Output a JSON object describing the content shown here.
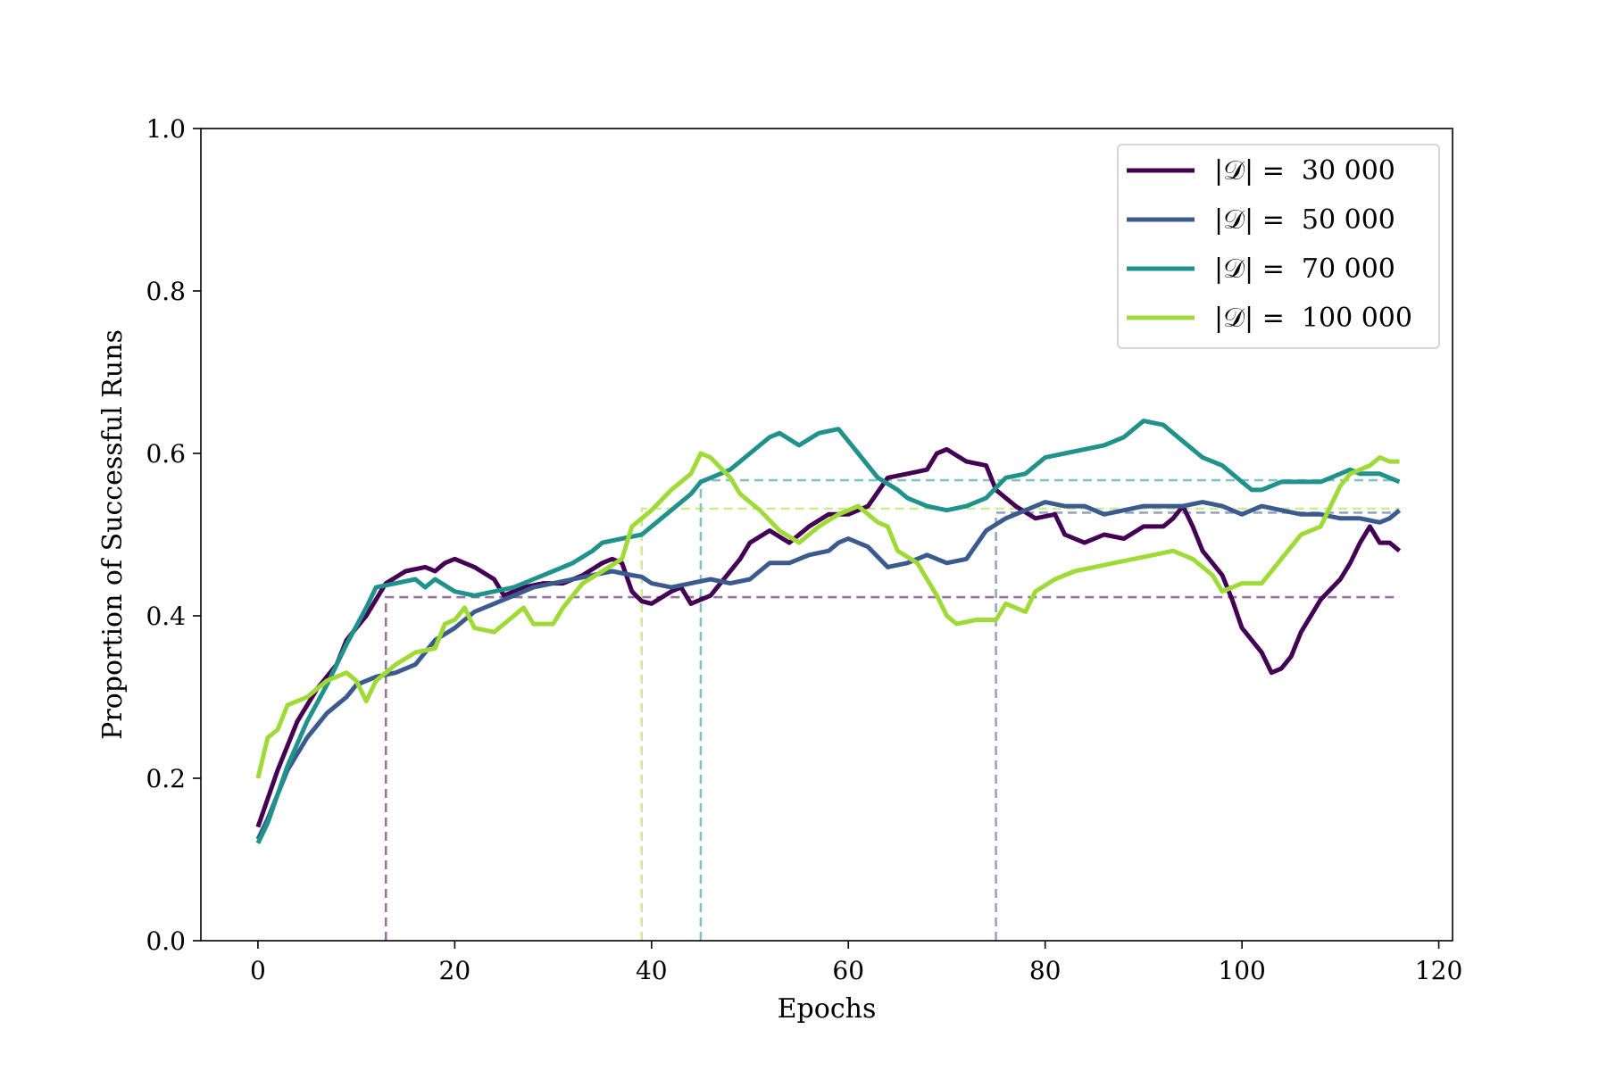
{
  "chart_data": {
    "type": "line",
    "title": "",
    "xlabel": "Epochs",
    "ylabel": "Proportion of Successful Runs",
    "xlim": [
      -5.8,
      121.4
    ],
    "ylim": [
      0.0,
      1.0
    ],
    "xticks": [
      0,
      20,
      40,
      60,
      80,
      100,
      120
    ],
    "yticks": [
      "0.0",
      "0.2",
      "0.4",
      "0.6",
      "0.8",
      "1.0"
    ],
    "grid": false,
    "legend_position": "top-right",
    "series": [
      {
        "name": "|𝒟| =  30 000",
        "color": "#440154",
        "threshold": {
          "x": 13,
          "y": 0.423
        },
        "points": [
          [
            0,
            0.14
          ],
          [
            2,
            0.21
          ],
          [
            4,
            0.27
          ],
          [
            6,
            0.31
          ],
          [
            8,
            0.34
          ],
          [
            9,
            0.37
          ],
          [
            10,
            0.385
          ],
          [
            11,
            0.4
          ],
          [
            13,
            0.44
          ],
          [
            15,
            0.455
          ],
          [
            17,
            0.46
          ],
          [
            18,
            0.455
          ],
          [
            19,
            0.465
          ],
          [
            20,
            0.47
          ],
          [
            22,
            0.46
          ],
          [
            24,
            0.445
          ],
          [
            25,
            0.425
          ],
          [
            27,
            0.435
          ],
          [
            29,
            0.44
          ],
          [
            31,
            0.44
          ],
          [
            33,
            0.45
          ],
          [
            35,
            0.465
          ],
          [
            36,
            0.47
          ],
          [
            37,
            0.465
          ],
          [
            38,
            0.43
          ],
          [
            39,
            0.418
          ],
          [
            40,
            0.415
          ],
          [
            42,
            0.43
          ],
          [
            43,
            0.435
          ],
          [
            44,
            0.415
          ],
          [
            46,
            0.425
          ],
          [
            47,
            0.44
          ],
          [
            49,
            0.47
          ],
          [
            50,
            0.49
          ],
          [
            52,
            0.505
          ],
          [
            54,
            0.49
          ],
          [
            56,
            0.51
          ],
          [
            58,
            0.525
          ],
          [
            60,
            0.525
          ],
          [
            62,
            0.535
          ],
          [
            64,
            0.57
          ],
          [
            66,
            0.575
          ],
          [
            68,
            0.58
          ],
          [
            69,
            0.6
          ],
          [
            70,
            0.605
          ],
          [
            72,
            0.59
          ],
          [
            74,
            0.585
          ],
          [
            75,
            0.555
          ],
          [
            77,
            0.535
          ],
          [
            79,
            0.52
          ],
          [
            81,
            0.525
          ],
          [
            82,
            0.5
          ],
          [
            84,
            0.49
          ],
          [
            86,
            0.5
          ],
          [
            88,
            0.495
          ],
          [
            90,
            0.51
          ],
          [
            92,
            0.51
          ],
          [
            93,
            0.52
          ],
          [
            94,
            0.535
          ],
          [
            95,
            0.51
          ],
          [
            96,
            0.48
          ],
          [
            98,
            0.45
          ],
          [
            99,
            0.42
          ],
          [
            100,
            0.385
          ],
          [
            102,
            0.355
          ],
          [
            103,
            0.33
          ],
          [
            104,
            0.335
          ],
          [
            105,
            0.35
          ],
          [
            106,
            0.38
          ],
          [
            108,
            0.42
          ],
          [
            110,
            0.445
          ],
          [
            111,
            0.465
          ],
          [
            112,
            0.49
          ],
          [
            113,
            0.51
          ],
          [
            114,
            0.49
          ],
          [
            115,
            0.49
          ],
          [
            116,
            0.48
          ]
        ]
      },
      {
        "name": "|𝒟| =  50 000",
        "color": "#3b5b8f",
        "threshold": {
          "x": 75,
          "y": 0.527
        },
        "points": [
          [
            0,
            0.125
          ],
          [
            1,
            0.15
          ],
          [
            3,
            0.21
          ],
          [
            5,
            0.25
          ],
          [
            7,
            0.28
          ],
          [
            9,
            0.3
          ],
          [
            10,
            0.315
          ],
          [
            12,
            0.325
          ],
          [
            14,
            0.33
          ],
          [
            16,
            0.34
          ],
          [
            18,
            0.37
          ],
          [
            20,
            0.385
          ],
          [
            22,
            0.405
          ],
          [
            24,
            0.415
          ],
          [
            26,
            0.425
          ],
          [
            28,
            0.435
          ],
          [
            30,
            0.44
          ],
          [
            32,
            0.445
          ],
          [
            34,
            0.45
          ],
          [
            36,
            0.455
          ],
          [
            38,
            0.45
          ],
          [
            39,
            0.448
          ],
          [
            40,
            0.44
          ],
          [
            42,
            0.435
          ],
          [
            44,
            0.44
          ],
          [
            46,
            0.445
          ],
          [
            48,
            0.44
          ],
          [
            50,
            0.445
          ],
          [
            52,
            0.465
          ],
          [
            54,
            0.465
          ],
          [
            56,
            0.475
          ],
          [
            58,
            0.48
          ],
          [
            59,
            0.49
          ],
          [
            60,
            0.495
          ],
          [
            62,
            0.485
          ],
          [
            64,
            0.46
          ],
          [
            66,
            0.465
          ],
          [
            68,
            0.475
          ],
          [
            70,
            0.465
          ],
          [
            72,
            0.47
          ],
          [
            74,
            0.505
          ],
          [
            76,
            0.52
          ],
          [
            78,
            0.53
          ],
          [
            80,
            0.54
          ],
          [
            82,
            0.535
          ],
          [
            84,
            0.535
          ],
          [
            86,
            0.525
          ],
          [
            88,
            0.53
          ],
          [
            90,
            0.535
          ],
          [
            92,
            0.535
          ],
          [
            94,
            0.535
          ],
          [
            96,
            0.54
          ],
          [
            98,
            0.535
          ],
          [
            100,
            0.525
          ],
          [
            102,
            0.535
          ],
          [
            104,
            0.53
          ],
          [
            106,
            0.525
          ],
          [
            108,
            0.525
          ],
          [
            110,
            0.52
          ],
          [
            112,
            0.52
          ],
          [
            114,
            0.515
          ],
          [
            115,
            0.52
          ],
          [
            116,
            0.53
          ]
        ]
      },
      {
        "name": "|𝒟| =  70 000",
        "color": "#21918c",
        "threshold": {
          "x": 45,
          "y": 0.567
        },
        "points": [
          [
            0,
            0.12
          ],
          [
            1,
            0.145
          ],
          [
            3,
            0.215
          ],
          [
            5,
            0.27
          ],
          [
            7,
            0.315
          ],
          [
            9,
            0.365
          ],
          [
            11,
            0.41
          ],
          [
            12,
            0.435
          ],
          [
            14,
            0.44
          ],
          [
            16,
            0.445
          ],
          [
            17,
            0.435
          ],
          [
            18,
            0.445
          ],
          [
            20,
            0.43
          ],
          [
            22,
            0.425
          ],
          [
            24,
            0.43
          ],
          [
            26,
            0.435
          ],
          [
            28,
            0.445
          ],
          [
            30,
            0.455
          ],
          [
            32,
            0.465
          ],
          [
            34,
            0.48
          ],
          [
            35,
            0.49
          ],
          [
            37,
            0.495
          ],
          [
            39,
            0.5
          ],
          [
            40,
            0.51
          ],
          [
            42,
            0.53
          ],
          [
            44,
            0.55
          ],
          [
            45,
            0.565
          ],
          [
            47,
            0.575
          ],
          [
            48,
            0.58
          ],
          [
            50,
            0.6
          ],
          [
            52,
            0.62
          ],
          [
            53,
            0.625
          ],
          [
            55,
            0.61
          ],
          [
            57,
            0.625
          ],
          [
            59,
            0.63
          ],
          [
            61,
            0.6
          ],
          [
            63,
            0.57
          ],
          [
            65,
            0.555
          ],
          [
            66,
            0.545
          ],
          [
            68,
            0.535
          ],
          [
            70,
            0.53
          ],
          [
            72,
            0.535
          ],
          [
            74,
            0.545
          ],
          [
            76,
            0.57
          ],
          [
            78,
            0.575
          ],
          [
            80,
            0.595
          ],
          [
            82,
            0.6
          ],
          [
            84,
            0.605
          ],
          [
            86,
            0.61
          ],
          [
            88,
            0.62
          ],
          [
            89,
            0.63
          ],
          [
            90,
            0.64
          ],
          [
            92,
            0.635
          ],
          [
            94,
            0.615
          ],
          [
            96,
            0.595
          ],
          [
            98,
            0.585
          ],
          [
            100,
            0.565
          ],
          [
            101,
            0.555
          ],
          [
            102,
            0.555
          ],
          [
            104,
            0.565
          ],
          [
            106,
            0.565
          ],
          [
            108,
            0.565
          ],
          [
            110,
            0.575
          ],
          [
            111,
            0.58
          ],
          [
            112,
            0.575
          ],
          [
            114,
            0.575
          ],
          [
            115,
            0.57
          ],
          [
            116,
            0.565
          ]
        ]
      },
      {
        "name": "|𝒟| =  100 000",
        "color": "#a0da39",
        "threshold": {
          "x": 39,
          "y": 0.532
        },
        "points": [
          [
            0,
            0.2
          ],
          [
            1,
            0.25
          ],
          [
            2,
            0.26
          ],
          [
            3,
            0.29
          ],
          [
            5,
            0.3
          ],
          [
            7,
            0.32
          ],
          [
            9,
            0.33
          ],
          [
            10,
            0.32
          ],
          [
            11,
            0.295
          ],
          [
            12,
            0.32
          ],
          [
            14,
            0.34
          ],
          [
            16,
            0.355
          ],
          [
            18,
            0.36
          ],
          [
            19,
            0.39
          ],
          [
            20,
            0.395
          ],
          [
            21,
            0.41
          ],
          [
            22,
            0.385
          ],
          [
            24,
            0.38
          ],
          [
            25,
            0.39
          ],
          [
            27,
            0.41
          ],
          [
            28,
            0.39
          ],
          [
            30,
            0.39
          ],
          [
            31,
            0.41
          ],
          [
            33,
            0.44
          ],
          [
            35,
            0.455
          ],
          [
            37,
            0.47
          ],
          [
            38,
            0.51
          ],
          [
            39,
            0.52
          ],
          [
            40,
            0.53
          ],
          [
            42,
            0.555
          ],
          [
            44,
            0.575
          ],
          [
            45,
            0.6
          ],
          [
            46,
            0.595
          ],
          [
            48,
            0.57
          ],
          [
            49,
            0.55
          ],
          [
            51,
            0.53
          ],
          [
            53,
            0.505
          ],
          [
            55,
            0.49
          ],
          [
            57,
            0.51
          ],
          [
            59,
            0.525
          ],
          [
            61,
            0.535
          ],
          [
            63,
            0.515
          ],
          [
            64,
            0.51
          ],
          [
            65,
            0.48
          ],
          [
            67,
            0.465
          ],
          [
            69,
            0.425
          ],
          [
            70,
            0.4
          ],
          [
            71,
            0.39
          ],
          [
            73,
            0.395
          ],
          [
            75,
            0.395
          ],
          [
            76,
            0.415
          ],
          [
            78,
            0.405
          ],
          [
            79,
            0.43
          ],
          [
            81,
            0.445
          ],
          [
            83,
            0.455
          ],
          [
            85,
            0.46
          ],
          [
            87,
            0.465
          ],
          [
            89,
            0.47
          ],
          [
            91,
            0.475
          ],
          [
            93,
            0.48
          ],
          [
            95,
            0.47
          ],
          [
            97,
            0.45
          ],
          [
            98,
            0.43
          ],
          [
            100,
            0.44
          ],
          [
            102,
            0.44
          ],
          [
            104,
            0.47
          ],
          [
            106,
            0.5
          ],
          [
            108,
            0.51
          ],
          [
            110,
            0.56
          ],
          [
            111,
            0.575
          ],
          [
            113,
            0.585
          ],
          [
            114,
            0.595
          ],
          [
            115,
            0.59
          ],
          [
            116,
            0.59
          ]
        ]
      }
    ]
  }
}
